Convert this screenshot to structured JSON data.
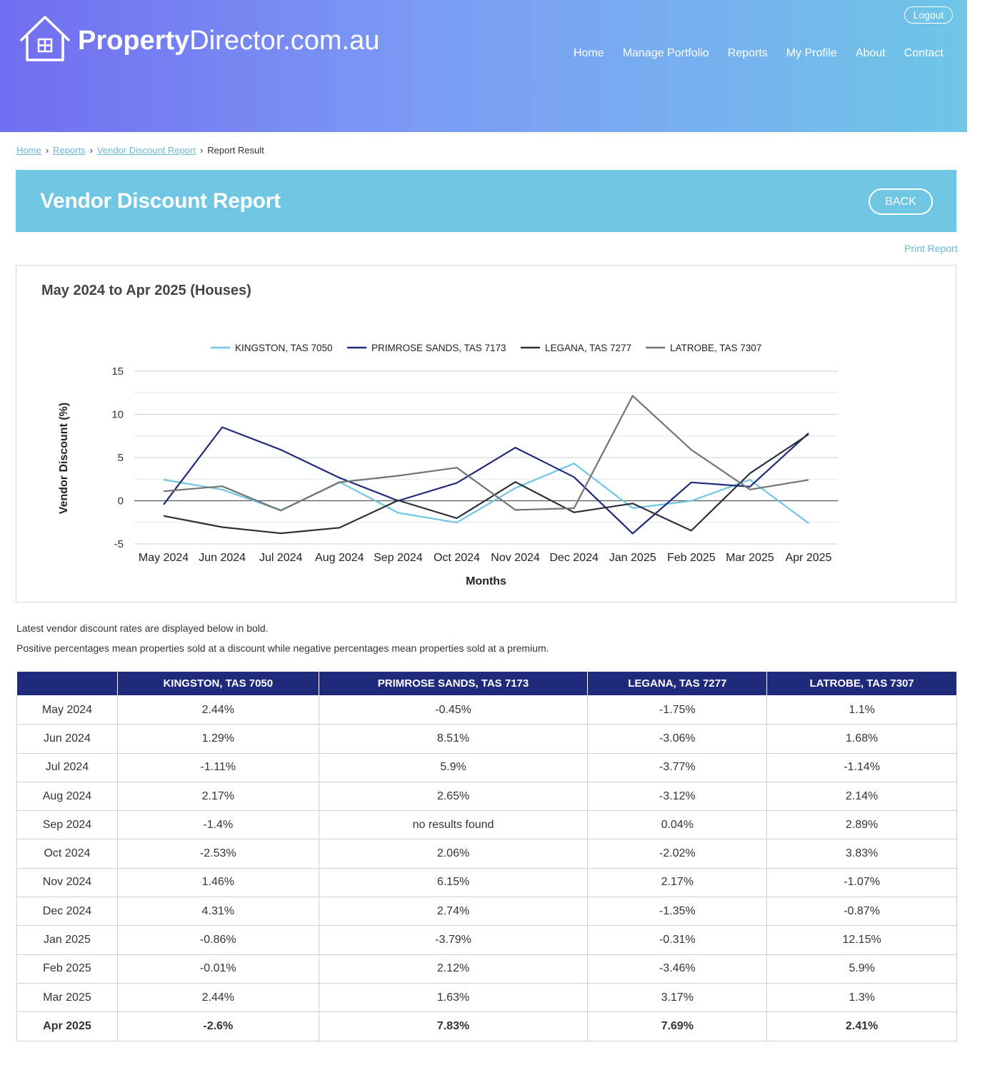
{
  "brand": {
    "bold": "Property",
    "rest": "Director.com.au"
  },
  "header": {
    "logout_label": "Logout"
  },
  "nav": [
    "Home",
    "Manage Portfolio",
    "Reports",
    "My Profile",
    "About",
    "Contact"
  ],
  "breadcrumb": {
    "home": "Home",
    "reports": "Reports",
    "report": "Vendor Discount Report",
    "current": "Report Result"
  },
  "page": {
    "title": "Vendor Discount Report",
    "back_label": "BACK",
    "print_label": "Print Report"
  },
  "chart_title": "May 2024 to Apr 2025 (Houses)",
  "colors": {
    "kingston": "#6ec6e2",
    "primrose": "#1f2a7c",
    "legana": "#2b303a",
    "latrobe": "#6f7475"
  },
  "chart_data": {
    "type": "line",
    "ylabel": "Vendor Discount (%)",
    "xlabel": "Months",
    "ylim": [
      -5,
      15
    ],
    "yticks": [
      "15",
      "10",
      "5",
      "0",
      "-5"
    ],
    "legend_position": "top",
    "grid": true,
    "categories": [
      "May 2024",
      "Jun 2024",
      "Jul 2024",
      "Aug 2024",
      "Sep 2024",
      "Oct 2024",
      "Nov 2024",
      "Dec 2024",
      "Jan 2025",
      "Feb 2025",
      "Mar 2025",
      "Apr 2025"
    ],
    "series": [
      {
        "name": "KINGSTON, TAS 7050",
        "values": [
          2.44,
          1.29,
          -1.11,
          2.17,
          -1.4,
          -2.53,
          1.46,
          4.31,
          -0.86,
          -0.01,
          2.44,
          -2.6
        ]
      },
      {
        "name": "PRIMROSE SANDS, TAS 7173",
        "values": [
          -0.45,
          8.51,
          5.9,
          2.65,
          null,
          2.06,
          6.15,
          2.74,
          -3.79,
          2.12,
          1.63,
          7.83
        ]
      },
      {
        "name": "LEGANA, TAS 7277",
        "values": [
          -1.75,
          -3.06,
          -3.77,
          -3.12,
          0.04,
          -2.02,
          2.17,
          -1.35,
          -0.31,
          -3.46,
          3.17,
          7.69
        ]
      },
      {
        "name": "LATROBE, TAS 7307",
        "values": [
          1.1,
          1.68,
          -1.14,
          2.14,
          2.89,
          3.83,
          -1.07,
          -0.87,
          12.15,
          5.9,
          1.3,
          2.41
        ]
      }
    ]
  },
  "notes": [
    "Latest vendor discount rates are displayed below in bold.",
    "Positive percentages mean properties sold at a discount while negative percentages mean properties sold at a premium."
  ],
  "table": {
    "headers": [
      "",
      "KINGSTON, TAS 7050",
      "PRIMROSE SANDS, TAS 7173",
      "LEGANA, TAS 7277",
      "LATROBE, TAS 7307"
    ],
    "rows": [
      [
        "May 2024",
        "2.44%",
        "-0.45%",
        "-1.75%",
        "1.1%"
      ],
      [
        "Jun 2024",
        "1.29%",
        "8.51%",
        "-3.06%",
        "1.68%"
      ],
      [
        "Jul 2024",
        "-1.11%",
        "5.9%",
        "-3.77%",
        "-1.14%"
      ],
      [
        "Aug 2024",
        "2.17%",
        "2.65%",
        "-3.12%",
        "2.14%"
      ],
      [
        "Sep 2024",
        "-1.4%",
        "no results found",
        "0.04%",
        "2.89%"
      ],
      [
        "Oct 2024",
        "-2.53%",
        "2.06%",
        "-2.02%",
        "3.83%"
      ],
      [
        "Nov 2024",
        "1.46%",
        "6.15%",
        "2.17%",
        "-1.07%"
      ],
      [
        "Dec 2024",
        "4.31%",
        "2.74%",
        "-1.35%",
        "-0.87%"
      ],
      [
        "Jan 2025",
        "-0.86%",
        "-3.79%",
        "-0.31%",
        "12.15%"
      ],
      [
        "Feb 2025",
        "-0.01%",
        "2.12%",
        "-3.46%",
        "5.9%"
      ],
      [
        "Mar 2025",
        "2.44%",
        "1.63%",
        "3.17%",
        "1.3%"
      ],
      [
        "Apr 2025",
        "-2.6%",
        "7.83%",
        "7.69%",
        "2.41%"
      ]
    ]
  }
}
